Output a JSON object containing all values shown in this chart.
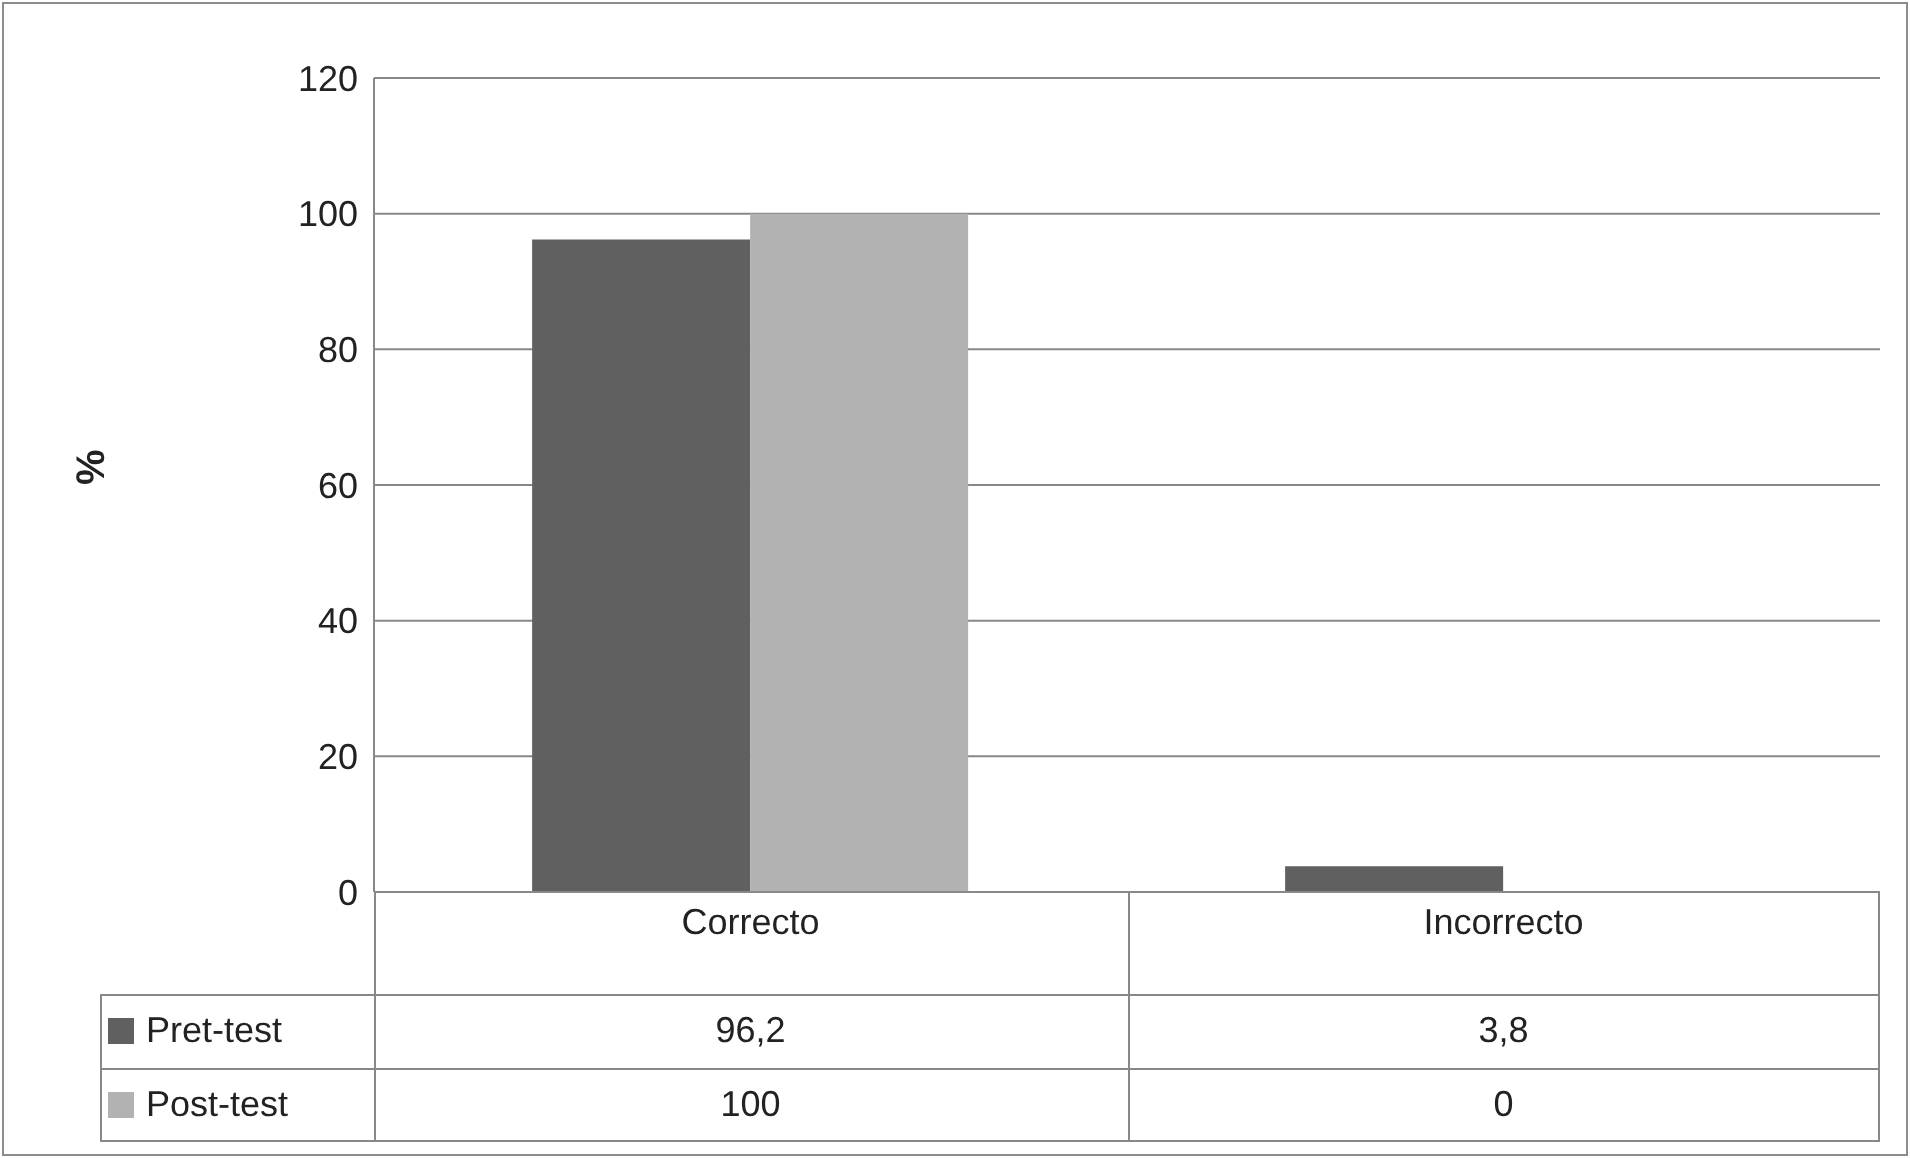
{
  "chart_data": {
    "type": "bar",
    "ylabel": "%",
    "categories": [
      "Correcto",
      "Incorrecto"
    ],
    "series": [
      {
        "name": "Pret-test",
        "color": "#606060",
        "values": [
          96.2,
          3.8
        ],
        "value_labels": [
          "96,2",
          "3,8"
        ]
      },
      {
        "name": "Post-test",
        "color": "#b2b2b2",
        "values": [
          100,
          0
        ],
        "value_labels": [
          "100",
          "0"
        ]
      }
    ],
    "ylim": [
      0,
      120
    ],
    "yticks": [
      0,
      20,
      40,
      60,
      80,
      100,
      120
    ],
    "grid": "y",
    "legend": "bottom left"
  }
}
